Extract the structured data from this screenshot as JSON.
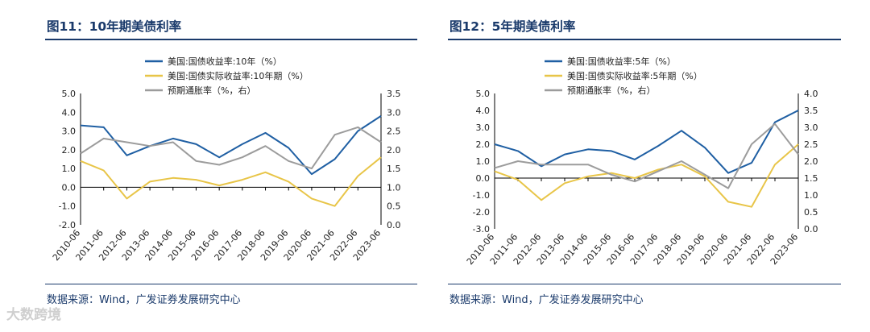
{
  "chart_data": [
    {
      "type": "line",
      "title": "图11：10年期美债利率",
      "source": "数据来源：Wind，广发证券发展研究中心",
      "categories": [
        "2010-06",
        "2011-06",
        "2012-06",
        "2013-06",
        "2014-06",
        "2015-06",
        "2016-06",
        "2017-06",
        "2018-06",
        "2019-06",
        "2020-06",
        "2021-06",
        "2022-06",
        "2023-06"
      ],
      "left_axis": {
        "ylim": [
          -2.0,
          5.0
        ],
        "ticks": [
          "-2.0",
          "-1.0",
          "0.0",
          "1.0",
          "2.0",
          "3.0",
          "4.0",
          "5.0"
        ]
      },
      "right_axis": {
        "ylim": [
          0.0,
          3.5
        ],
        "ticks": [
          "0.0",
          "0.5",
          "1.0",
          "1.5",
          "2.0",
          "2.5",
          "3.0",
          "3.5"
        ]
      },
      "series": [
        {
          "name": "美国:国债收益率:10年（%）",
          "axis": "left",
          "color": "#1f5fa3",
          "values": [
            3.3,
            3.2,
            1.7,
            2.2,
            2.6,
            2.3,
            1.6,
            2.3,
            2.9,
            2.1,
            0.7,
            1.5,
            3.0,
            3.8
          ]
        },
        {
          "name": "美国:国债实际收益率:10年期（%）",
          "axis": "left",
          "color": "#e8c548",
          "values": [
            1.4,
            0.9,
            -0.6,
            0.3,
            0.5,
            0.4,
            0.1,
            0.4,
            0.8,
            0.3,
            -0.6,
            -1.0,
            0.6,
            1.6
          ]
        },
        {
          "name": "预期通胀率（%，右）",
          "axis": "right",
          "color": "#9c9c9c",
          "values": [
            1.9,
            2.3,
            2.2,
            2.1,
            2.2,
            1.7,
            1.6,
            1.8,
            2.1,
            1.7,
            1.5,
            2.4,
            2.6,
            2.2
          ]
        }
      ]
    },
    {
      "type": "line",
      "title": "图12：5年期美债利率",
      "source": "数据来源：Wind，广发证券发展研究中心",
      "categories": [
        "2010-06",
        "2011-06",
        "2012-06",
        "2013-06",
        "2014-06",
        "2015-06",
        "2016-06",
        "2017-06",
        "2018-06",
        "2019-06",
        "2020-06",
        "2021-06",
        "2022-06",
        "2023-06"
      ],
      "left_axis": {
        "ylim": [
          -3.0,
          5.0
        ],
        "ticks": [
          "-3.0",
          "-2.0",
          "-1.0",
          "0.0",
          "1.0",
          "2.0",
          "3.0",
          "4.0",
          "5.0"
        ]
      },
      "right_axis": {
        "ylim": [
          0.0,
          4.0
        ],
        "ticks": [
          "0.0",
          "0.5",
          "1.0",
          "1.5",
          "2.0",
          "2.5",
          "3.0",
          "3.5",
          "4.0"
        ]
      },
      "series": [
        {
          "name": "美国:国债收益率:5年（%）",
          "axis": "left",
          "color": "#1f5fa3",
          "values": [
            2.0,
            1.6,
            0.7,
            1.4,
            1.7,
            1.6,
            1.1,
            1.9,
            2.8,
            1.8,
            0.3,
            0.9,
            3.3,
            4.0
          ]
        },
        {
          "name": "美国:国债实际收益率:5年期（%）",
          "axis": "left",
          "color": "#e8c548",
          "values": [
            0.4,
            -0.1,
            -1.3,
            -0.3,
            0.1,
            0.3,
            0.0,
            0.5,
            0.8,
            0.1,
            -1.4,
            -1.7,
            0.8,
            2.0
          ]
        },
        {
          "name": "预期通胀率（%，右）",
          "axis": "right",
          "color": "#9c9c9c",
          "values": [
            1.8,
            2.0,
            1.9,
            1.9,
            1.9,
            1.6,
            1.4,
            1.7,
            2.0,
            1.6,
            1.2,
            2.5,
            3.1,
            2.2
          ]
        }
      ]
    }
  ],
  "watermark": "大数跨境"
}
